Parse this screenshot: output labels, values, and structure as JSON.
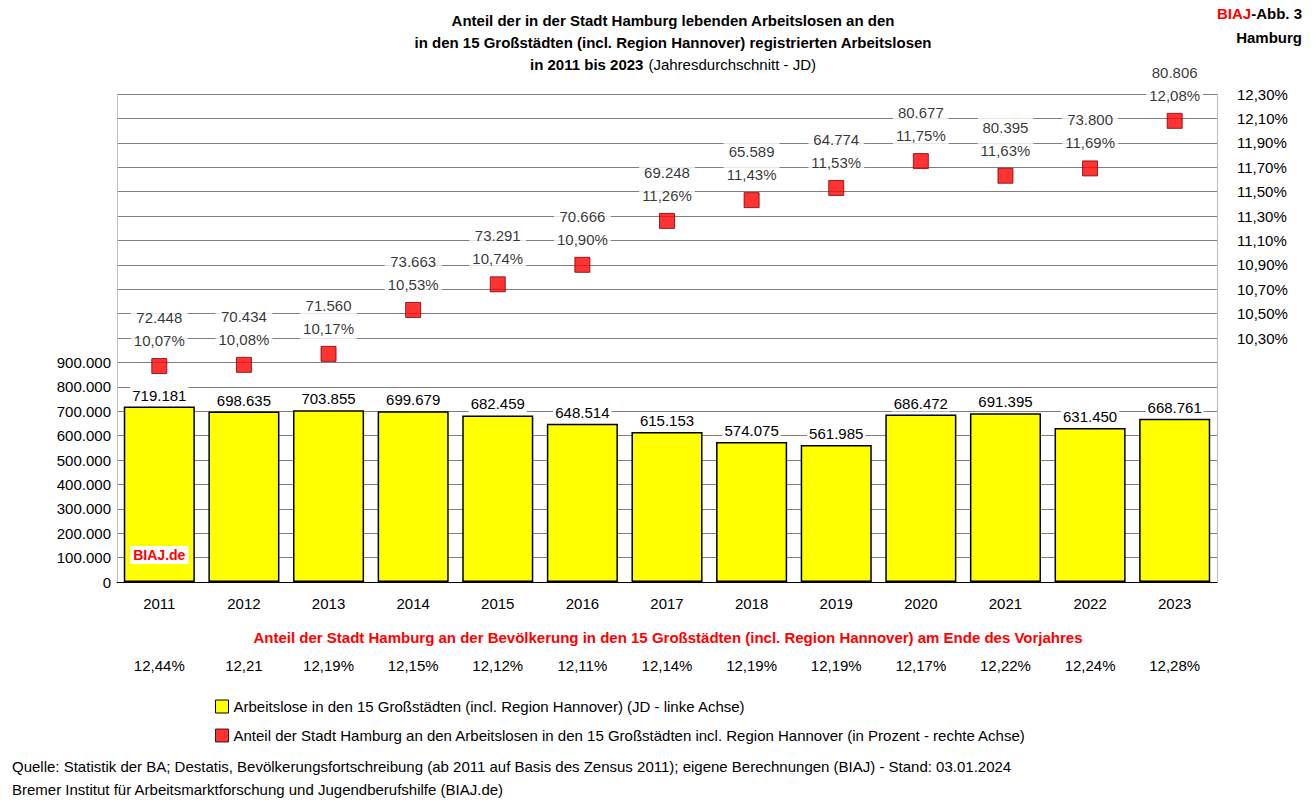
{
  "chart_data": {
    "type": "bar",
    "title": "Anteil der in der Stadt Hamburg lebenden Arbeitslosen an den\nin den 15 Großstädten (incl. Region Hannover) registrierten Arbeitslosen\nin 2011 bis 2023",
    "subtitle": "(Jahresdurchschnitt - JD)",
    "annotations": [
      "BIAJ-Abb. 3",
      "Hamburg",
      "BIAJ.de"
    ],
    "source": [
      "Quelle: Statistik der BA; Destatis, Bevölkerungsfortschreibung (ab 2011 auf Basis des Zensus 2011); eigene Berechnungen (BIAJ) - Stand: 03.01.2024",
      "Bremer Institut für Arbeitsmarktforschung und Jugendberufshilfe (BIAJ.de)"
    ],
    "categories": [
      "2011",
      "2012",
      "2013",
      "2014",
      "2015",
      "2016",
      "2017",
      "2018",
      "2019",
      "2020",
      "2021",
      "2022",
      "2023"
    ],
    "series": [
      {
        "name": "Arbeitslose in den 15 Großstädten (incl. Region Hannover) (JD - linke Achse)",
        "type": "bar",
        "color": "#ffff00",
        "values": [
          719181,
          698635,
          703855,
          699679,
          682459,
          648514,
          615153,
          574075,
          561985,
          686472,
          691395,
          631450,
          668761
        ],
        "value_labels": [
          "719.181",
          "698.635",
          "703.855",
          "699.679",
          "682.459",
          "648.514",
          "615.153",
          "574.075",
          "561.985",
          "686.472",
          "691.395",
          "631.450",
          "668.761"
        ]
      },
      {
        "name": "Anteil der Stadt Hamburg an den Arbeitslosen in den 15 Großstädten incl. Region Hannover (in Prozent - rechte Achse)",
        "type": "scatter",
        "axis": "y2",
        "color": "#ff0000",
        "marker": "square",
        "values": [
          10.07,
          10.08,
          10.17,
          10.53,
          10.74,
          10.9,
          11.26,
          11.43,
          11.53,
          11.75,
          11.63,
          11.69,
          12.08
        ],
        "value_labels": [
          "10,07%",
          "10,08%",
          "10,17%",
          "10,53%",
          "10,74%",
          "10,90%",
          "11,26%",
          "11,43%",
          "11,53%",
          "11,75%",
          "11,63%",
          "11,69%",
          "12,08%"
        ],
        "counts": [
          72448,
          70434,
          71560,
          73663,
          73291,
          70666,
          69248,
          65589,
          64774,
          80677,
          80395,
          73800,
          80806
        ],
        "count_labels": [
          "72.448",
          "70.434",
          "71.560",
          "73.663",
          "73.291",
          "70.666",
          "69.248",
          "65.589",
          "64.774",
          "80.677",
          "80.395",
          "73.800",
          "80.806"
        ]
      }
    ],
    "population_share": {
      "title": "Anteil der Stadt Hamburg an der Bevölkerung in den 15 Großstädten (incl. Region Hannover) am Ende des Vorjahres",
      "values": [
        12.44,
        12.21,
        12.19,
        12.15,
        12.12,
        12.11,
        12.14,
        12.19,
        12.19,
        12.17,
        12.22,
        12.24,
        12.28
      ],
      "labels": [
        "12,44%",
        "12,21",
        "12,19%",
        "12,15%",
        "12,12%",
        "12,11%",
        "12,14%",
        "12,19%",
        "12,19%",
        "12,17%",
        "12,22%",
        "12,24%",
        "12,28%"
      ]
    },
    "ylim": [
      0,
      2000000
    ],
    "yticks": [
      0,
      {
        "value": 100000,
        "label": "100.000"
      },
      {
        "value": 200000,
        "label": "200.000"
      },
      {
        "value": 300000,
        "label": "300.000"
      },
      {
        "value": 400000,
        "label": "400.000"
      },
      {
        "value": 500000,
        "label": "500.000"
      },
      {
        "value": 600000,
        "label": "600.000"
      },
      {
        "value": 700000,
        "label": "700.000"
      },
      {
        "value": 800000,
        "label": "800.000"
      },
      {
        "value": 900000,
        "label": "900.000"
      }
    ],
    "y2lim": [
      8.3,
      12.3
    ],
    "y2ticks": [
      {
        "value": 10.3,
        "label": "10,30%"
      },
      {
        "value": 10.5,
        "label": "10,50%"
      },
      {
        "value": 10.7,
        "label": "10,70%"
      },
      {
        "value": 10.9,
        "label": "10,90%"
      },
      {
        "value": 11.1,
        "label": "11,10%"
      },
      {
        "value": 11.3,
        "label": "11,30%"
      },
      {
        "value": 11.5,
        "label": "11,50%"
      },
      {
        "value": 11.7,
        "label": "11,70%"
      },
      {
        "value": 11.9,
        "label": "11,90%"
      },
      {
        "value": 12.1,
        "label": "12,10%"
      },
      {
        "value": 12.3,
        "label": "12,30%"
      }
    ],
    "grid": true,
    "data_labels": true,
    "legend": "bottom"
  }
}
